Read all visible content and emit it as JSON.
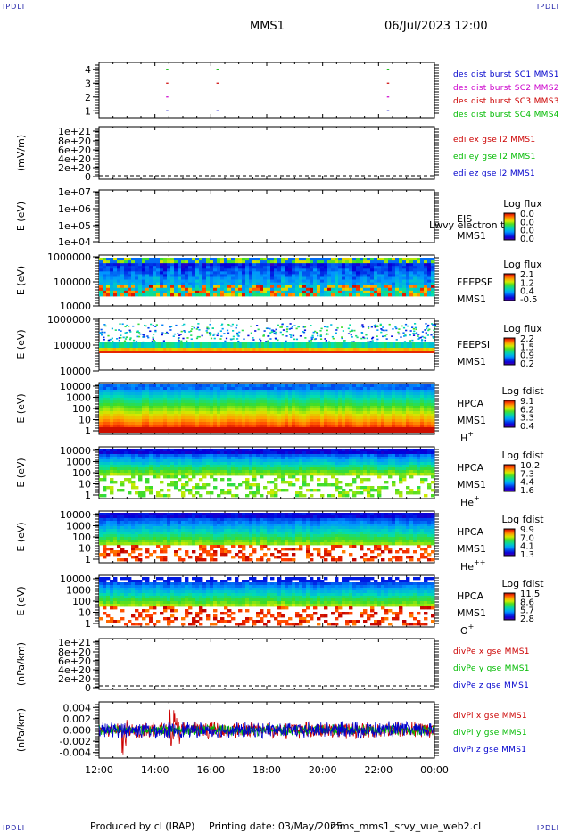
{
  "header": {
    "corner_left": "IPDLI",
    "corner_right": "IPDLI",
    "title": "MMS1",
    "datetime": "06/Jul/2023 12:00"
  },
  "footer": {
    "produced_by": "Produced by cl (IRAP)",
    "printing_date": "Printing date: 03/May/2025",
    "script": "mms_mms1_srvy_vue_web2.cl",
    "corner_left": "IPDLI",
    "corner_right": "IPDLI"
  },
  "time_axis": {
    "ticks": [
      "12:00",
      "14:00",
      "16:00",
      "18:00",
      "20:00",
      "22:00",
      "00:00"
    ]
  },
  "colors": {
    "blue": "#0000cc",
    "magenta": "#cc00cc",
    "red": "#cc0000",
    "green": "#00bb00"
  },
  "chart_data": [
    {
      "type": "scatter",
      "id": "burst",
      "ylim": [
        0.5,
        4.5
      ],
      "yticks": [
        "1",
        "2",
        "3",
        "4"
      ],
      "legend": [
        {
          "text": "des dist burst SC1 MMS1",
          "color": "#0000cc"
        },
        {
          "text": "des dist burst SC2 MMS2",
          "color": "#cc00cc"
        },
        {
          "text": "des dist burst SC3 MMS3",
          "color": "#cc0000"
        },
        {
          "text": "des dist burst SC4 MMS4",
          "color": "#00bb00"
        }
      ],
      "series": [
        {
          "sc": 1,
          "color": "#0000cc",
          "x": [
            14.4,
            16.2,
            22.3
          ]
        },
        {
          "sc": 2,
          "color": "#cc00cc",
          "x": [
            14.4,
            22.3
          ]
        },
        {
          "sc": 3,
          "color": "#cc0000",
          "x": [
            14.4,
            16.2,
            22.3
          ]
        },
        {
          "sc": 4,
          "color": "#00bb00",
          "x": [
            14.4,
            16.2,
            22.3
          ]
        }
      ]
    },
    {
      "type": "line",
      "id": "edi",
      "ylabel": "(mV/m)",
      "yticks": [
        "1e+21",
        "8e+20",
        "6e+20",
        "4e+20",
        "2e+20",
        "0"
      ],
      "legend": [
        {
          "text": "edi ex gse l2 MMS1",
          "color": "#cc0000"
        },
        {
          "text": "edi ey gse l2 MMS1",
          "color": "#00bb00"
        },
        {
          "text": "edi ez gse l2 MMS1",
          "color": "#0000cc"
        }
      ]
    },
    {
      "type": "heatmap",
      "id": "eis",
      "ylabel": "E (eV)",
      "yticks": [
        "1e+07",
        "1e+06",
        "1e+05",
        "1e+04"
      ],
      "side_labels": [
        "EIS",
        "MMS1"
      ],
      "overlay": "Lwvy electron to",
      "colorbar": {
        "title": "Log flux",
        "ticks": [
          "0.0",
          "0.0",
          "0.0",
          "0.0"
        ]
      }
    },
    {
      "type": "heatmap",
      "id": "feepse",
      "ylabel": "E (eV)",
      "yticks": [
        "1000000",
        "100000",
        "10000"
      ],
      "side_labels": [
        "FEEPSE",
        "MMS1"
      ],
      "colorbar": {
        "title": "Log flux",
        "ticks": [
          "2.1",
          "1.2",
          "0.4",
          "-0.5"
        ]
      }
    },
    {
      "type": "heatmap",
      "id": "feepsi",
      "ylabel": "E (eV)",
      "yticks": [
        "1000000",
        "100000",
        "10000"
      ],
      "side_labels": [
        "FEEPSI",
        "MMS1"
      ],
      "colorbar": {
        "title": "Log flux",
        "ticks": [
          "2.2",
          "1.5",
          "0.9",
          "0.2"
        ]
      }
    },
    {
      "type": "heatmap",
      "id": "hpca_h",
      "ylabel": "E (eV)",
      "yticks": [
        "10000",
        "1000",
        "100",
        "10",
        "1"
      ],
      "side_labels": [
        "HPCA",
        "MMS1"
      ],
      "species": "H",
      "species_sup": "+",
      "colorbar": {
        "title": "Log fdist",
        "ticks": [
          "9.1",
          "6.2",
          "3.3",
          "0.4"
        ]
      }
    },
    {
      "type": "heatmap",
      "id": "hpca_he",
      "ylabel": "E (eV)",
      "yticks": [
        "10000",
        "1000",
        "100",
        "10",
        "1"
      ],
      "side_labels": [
        "HPCA",
        "MMS1"
      ],
      "species": "He",
      "species_sup": "+",
      "colorbar": {
        "title": "Log fdist",
        "ticks": [
          "10.2",
          "7.3",
          "4.4",
          "1.6"
        ]
      }
    },
    {
      "type": "heatmap",
      "id": "hpca_hepp",
      "ylabel": "E (eV)",
      "yticks": [
        "10000",
        "1000",
        "100",
        "10",
        "1"
      ],
      "side_labels": [
        "HPCA",
        "MMS1"
      ],
      "species": "He",
      "species_sup": "++",
      "colorbar": {
        "title": "Log fdist",
        "ticks": [
          "9.9",
          "7.0",
          "4.1",
          "1.3"
        ]
      }
    },
    {
      "type": "heatmap",
      "id": "hpca_o",
      "ylabel": "E (eV)",
      "yticks": [
        "10000",
        "1000",
        "100",
        "10",
        "1"
      ],
      "side_labels": [
        "HPCA",
        "MMS1"
      ],
      "species": "O",
      "species_sup": "+",
      "colorbar": {
        "title": "Log fdist",
        "ticks": [
          "11.5",
          "8.6",
          "5.7",
          "2.8"
        ]
      }
    },
    {
      "type": "line",
      "id": "divpe",
      "ylabel": "(nPa/km)",
      "yticks": [
        "1e+21",
        "8e+20",
        "6e+20",
        "4e+20",
        "2e+20",
        "0"
      ],
      "legend": [
        {
          "text": "divPe x gse MMS1",
          "color": "#cc0000"
        },
        {
          "text": "divPe y gse MMS1",
          "color": "#00bb00"
        },
        {
          "text": "divPe z gse MMS1",
          "color": "#0000cc"
        }
      ]
    },
    {
      "type": "line",
      "id": "divpi",
      "ylabel": "(nPa/km)",
      "ylim": [
        -0.005,
        0.005
      ],
      "yticks": [
        "0.004",
        "0.002",
        "0.000",
        "-0.002",
        "-0.004"
      ],
      "legend": [
        {
          "text": "divPi x gse MMS1",
          "color": "#cc0000"
        },
        {
          "text": "divPi y gse MMS1",
          "color": "#00bb00"
        },
        {
          "text": "divPi z gse MMS1",
          "color": "#0000cc"
        }
      ]
    }
  ]
}
